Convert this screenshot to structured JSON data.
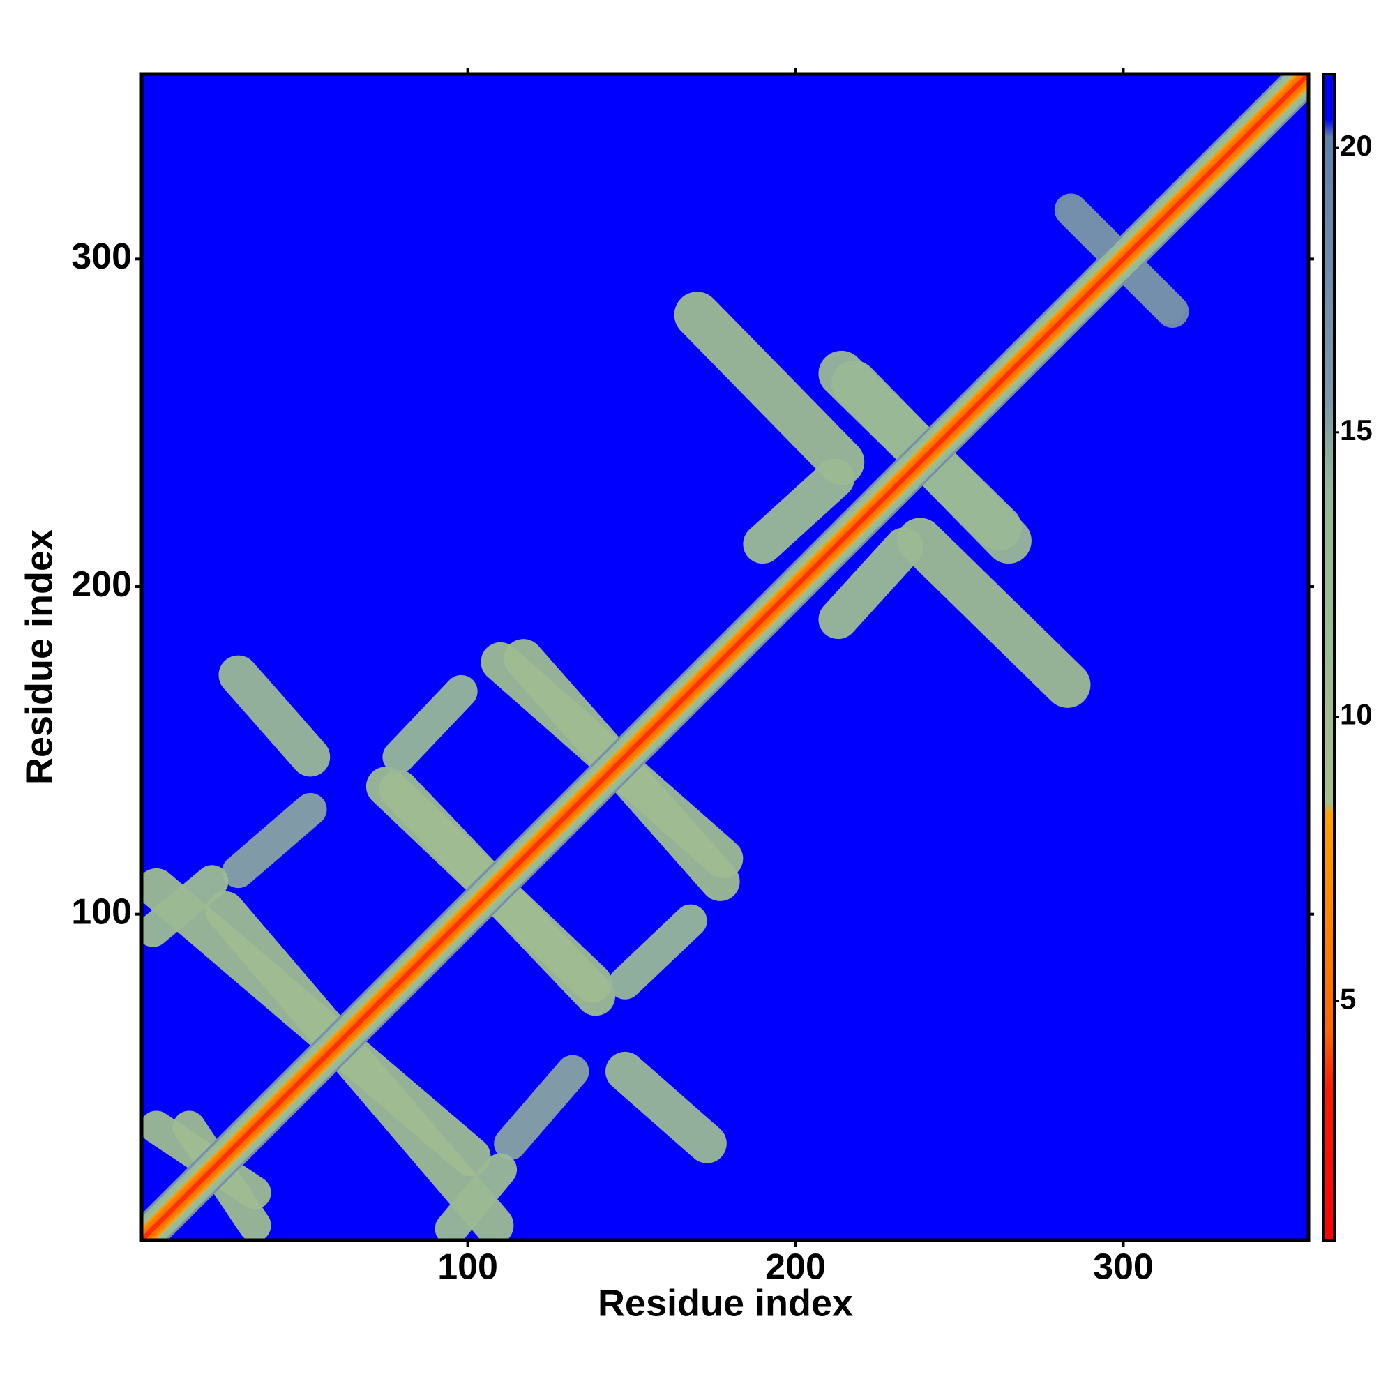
{
  "chart_data": {
    "type": "heatmap",
    "x_label": "Residue index",
    "y_label": "Residue index",
    "xlim": [
      0.5,
      356.5
    ],
    "ylim": [
      0.5,
      356.5
    ],
    "xticks": [
      100,
      200,
      300
    ],
    "yticks": [
      100,
      200,
      300
    ],
    "symmetric": true,
    "background_value": 21,
    "diagonal_band": {
      "offsets": [
        8,
        7,
        6,
        5,
        4,
        3,
        2,
        1
      ],
      "values": [
        17,
        14,
        12,
        10,
        8,
        6,
        5,
        3.8
      ]
    },
    "contact_strips": [
      {
        "start": [
          283,
          170
        ],
        "end": [
          238,
          214
        ],
        "half_width": 7,
        "value": 11
      },
      {
        "start": [
          214,
          265
        ],
        "end": [
          262,
          218
        ],
        "half_width": 7,
        "value": 13
      },
      {
        "start": [
          110,
          177
        ],
        "end": [
          178,
          117
        ],
        "half_width": 6,
        "value": 11
      },
      {
        "start": [
          75,
          139
        ],
        "end": [
          138,
          79
        ],
        "half_width": 6,
        "value": 11
      },
      {
        "start": [
          148,
          79
        ],
        "end": [
          168,
          98
        ],
        "half_width": 5,
        "value": 14
      },
      {
        "start": [
          148,
          52
        ],
        "end": [
          173,
          30
        ],
        "half_width": 6,
        "value": 13
      },
      {
        "start": [
          113,
          30
        ],
        "end": [
          132,
          52
        ],
        "half_width": 5,
        "value": 15
      },
      {
        "start": [
          26,
          101
        ],
        "end": [
          108,
          5
        ],
        "half_width": 6,
        "value": 11
      },
      {
        "start": [
          95,
          4
        ],
        "end": [
          110,
          22
        ],
        "half_width": 5,
        "value": 12
      },
      {
        "start": [
          5,
          35
        ],
        "end": [
          35,
          15
        ],
        "half_width": 5,
        "value": 11
      },
      {
        "start": [
          285,
          314
        ],
        "end": [
          315,
          284
        ],
        "half_width": 5,
        "value": 17
      },
      {
        "start": [
          213,
          190
        ],
        "end": [
          233,
          212
        ],
        "half_width": 6,
        "value": 12
      }
    ],
    "colorbar": {
      "clim": [
        0.8,
        21.3
      ],
      "ticks": [
        5,
        10,
        15,
        20
      ],
      "stops": {
        "values": [
          0.8,
          3.5,
          4.5,
          8.3,
          8.5,
          14,
          15.5,
          20.2,
          20.5,
          21.3
        ],
        "colors": [
          "#ff0000",
          "#ff1a00",
          "#ff6600",
          "#ffa000",
          "#a4c08c",
          "#98b898",
          "#7f98a8",
          "#5f80b0",
          "#0000ff",
          "#0000ff"
        ]
      }
    }
  }
}
